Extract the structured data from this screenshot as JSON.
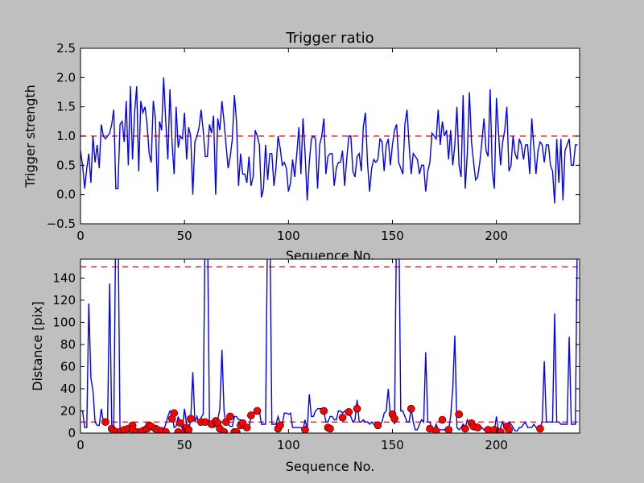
{
  "chart_data": [
    {
      "type": "line",
      "title": "Trigger ratio",
      "xlabel": "Sequence No.",
      "ylabel": "Trigger strength",
      "xlim": [
        0,
        240
      ],
      "ylim": [
        -0.5,
        2.5
      ],
      "xticks": [
        "0",
        "50",
        "100",
        "150",
        "200"
      ],
      "xtick_values": [
        0,
        50,
        100,
        150,
        200
      ],
      "yticks": [
        "−0.5",
        "0.0",
        "0.5",
        "1.0",
        "1.5",
        "2.0",
        "2.5"
      ],
      "ytick_values": [
        -0.5,
        0,
        0.5,
        1.0,
        1.5,
        2.0,
        2.5
      ],
      "threshold": 1.0,
      "series_color": "#0000ff",
      "threshold_color": "#ff0000",
      "values": [
        0.75,
        0.5,
        0.1,
        0.45,
        0.7,
        0.2,
        1.0,
        0.55,
        0.85,
        0.45,
        1.2,
        1.0,
        0.95,
        1.0,
        1.05,
        1.2,
        1.45,
        0.1,
        0.1,
        1.2,
        1.25,
        0.9,
        1.6,
        0.5,
        1.85,
        0.6,
        1.4,
        1.85,
        0.4,
        1.6,
        1.4,
        1.5,
        1.2,
        0.7,
        0.55,
        1.6,
        1.3,
        0.05,
        1.25,
        1.1,
        2.0,
        1.25,
        0.6,
        1.8,
        0.9,
        0.35,
        1.5,
        0.8,
        1.0,
        0.95,
        1.4,
        0.6,
        1.15,
        1.0,
        0.0,
        0.9,
        1.0,
        1.15,
        1.45,
        1.1,
        0.65,
        0.65,
        1.2,
        1.05,
        1.35,
        0.0,
        1.3,
        1.1,
        1.6,
        1.25,
        0.85,
        0.45,
        0.65,
        0.95,
        1.7,
        1.25,
        0.15,
        0.7,
        0.35,
        0.35,
        0.2,
        0.65,
        0.15,
        0.3,
        1.1,
        1.0,
        0.85,
        -0.05,
        0.1,
        0.85,
        0.25,
        0.7,
        0.7,
        0.15,
        0.45,
        1.0,
        0.8,
        0.5,
        0.55,
        0.45,
        0.05,
        0.2,
        0.6,
        0.3,
        0.7,
        1.15,
        0.35,
        1.3,
        0.7,
        -0.1,
        0.55,
        0.95,
        1.0,
        0.95,
        0.1,
        0.85,
        1.0,
        1.3,
        0.35,
        0.65,
        0.7,
        0.7,
        0.15,
        0.45,
        0.55,
        0.55,
        0.75,
        0.15,
        0.6,
        1.0,
        1.0,
        0.4,
        0.3,
        0.65,
        0.7,
        0.4,
        1.15,
        1.4,
        0.55,
        0.05,
        0.45,
        0.6,
        0.55,
        0.6,
        0.95,
        0.9,
        0.4,
        0.85,
        0.95,
        0.5,
        0.85,
        1.1,
        1.2,
        0.55,
        0.45,
        0.35,
        1.2,
        1.45,
        0.85,
        0.35,
        0.7,
        0.65,
        0.6,
        0.35,
        0.5,
        0.5,
        0.05,
        0.4,
        0.55,
        1.05,
        1.0,
        0.95,
        1.45,
        0.85,
        1.25,
        1.0,
        1.1,
        0.6,
        1.1,
        0.5,
        0.85,
        1.5,
        0.5,
        0.3,
        1.7,
        0.1,
        0.7,
        1.75,
        0.9,
        0.55,
        0.25,
        0.3,
        0.55,
        0.9,
        1.3,
        0.75,
        0.65,
        1.8,
        0.4,
        0.1,
        1.65,
        1.05,
        0.5,
        0.9,
        1.1,
        1.5,
        0.4,
        0.5,
        1.0,
        0.7,
        0.6,
        0.95,
        0.85,
        0.6,
        0.85,
        0.85,
        0.35,
        1.3,
        0.8,
        0.35,
        0.75,
        0.9,
        0.85,
        0.55,
        0.85,
        0.85,
        0.5,
        0.4,
        -0.15,
        0.95,
        0.2,
        0.95,
        -0.1,
        0.75,
        0.85,
        0.95,
        0.5,
        0.5,
        0.85,
        0.85
      ]
    },
    {
      "type": "line",
      "title": "",
      "xlabel": "Sequence No.",
      "ylabel": "Distance [pix]",
      "xlim": [
        0,
        240
      ],
      "ylim": [
        0,
        157
      ],
      "xticks": [
        "0",
        "50",
        "100",
        "150",
        "200"
      ],
      "xtick_values": [
        0,
        50,
        100,
        150,
        200
      ],
      "yticks": [
        "0",
        "20",
        "40",
        "60",
        "80",
        "100",
        "120",
        "140"
      ],
      "ytick_values": [
        0,
        20,
        40,
        60,
        80,
        100,
        120,
        140
      ],
      "thresholds": [
        10,
        150
      ],
      "series_color": "#0000ff",
      "threshold_color": "#ff0000",
      "marker_color": "#ff0000",
      "values": [
        20,
        20,
        5,
        5,
        117,
        50,
        38,
        10,
        7,
        7,
        22,
        10,
        8,
        8,
        135,
        8,
        2,
        200,
        200,
        2,
        3,
        3,
        5,
        4,
        5,
        8,
        3,
        2,
        3,
        4,
        5,
        6,
        7,
        3,
        4,
        4,
        3,
        2,
        3,
        5,
        3,
        8,
        15,
        20,
        18,
        5,
        6,
        15,
        8,
        4,
        22,
        8,
        3,
        12,
        55,
        10,
        15,
        8,
        14,
        17,
        200,
        200,
        8,
        8,
        5,
        6,
        12,
        22,
        75,
        20,
        8,
        8,
        6,
        6,
        15,
        15,
        12,
        12,
        10,
        10,
        5,
        5,
        15,
        18,
        20,
        22,
        20,
        8,
        8,
        8,
        200,
        200,
        8,
        8,
        8,
        15,
        8,
        8,
        18,
        18,
        17,
        18,
        5,
        5,
        5,
        5,
        5,
        3,
        12,
        3,
        35,
        15,
        15,
        20,
        22,
        22,
        22,
        20,
        10,
        10,
        15,
        15,
        12,
        12,
        20,
        20,
        18,
        20,
        20,
        18,
        15,
        10,
        12,
        30,
        10,
        10,
        12,
        10,
        10,
        8,
        10,
        8,
        8,
        10,
        8,
        10,
        18,
        20,
        40,
        15,
        15,
        8,
        200,
        200,
        20,
        20,
        15,
        10,
        10,
        22,
        10,
        3,
        3,
        8,
        12,
        10,
        73,
        10,
        10,
        3,
        3,
        8,
        3,
        3,
        3,
        3,
        5,
        3,
        15,
        40,
        88,
        5,
        3,
        5,
        8,
        5,
        12,
        8,
        5,
        3,
        3,
        8,
        3,
        5,
        3,
        3,
        2,
        3,
        2,
        2,
        15,
        2,
        5,
        10,
        5,
        5,
        10,
        8,
        5,
        2,
        2,
        5,
        5,
        8,
        10,
        5,
        5,
        5,
        8,
        5,
        5,
        5,
        10,
        65,
        10,
        10,
        10,
        10,
        108,
        10,
        10,
        8,
        8,
        8,
        8,
        87,
        8,
        8,
        8,
        200
      ],
      "markers": [
        [
          12,
          10
        ],
        [
          15,
          4
        ],
        [
          16,
          2
        ],
        [
          17,
          1
        ],
        [
          19,
          1
        ],
        [
          21,
          3
        ],
        [
          23,
          4
        ],
        [
          25,
          7
        ],
        [
          25,
          3
        ],
        [
          27,
          1
        ],
        [
          29,
          1
        ],
        [
          30,
          2
        ],
        [
          32,
          4
        ],
        [
          33,
          7
        ],
        [
          34,
          6
        ],
        [
          36,
          4
        ],
        [
          37,
          3
        ],
        [
          39,
          2
        ],
        [
          41,
          1
        ],
        [
          44,
          13
        ],
        [
          45,
          18
        ],
        [
          47,
          1
        ],
        [
          48,
          9
        ],
        [
          50,
          1
        ],
        [
          51,
          5
        ],
        [
          52,
          3
        ],
        [
          53,
          13
        ],
        [
          58,
          10
        ],
        [
          60,
          10
        ],
        [
          63,
          8
        ],
        [
          65,
          11
        ],
        [
          66,
          9
        ],
        [
          67,
          4
        ],
        [
          69,
          1
        ],
        [
          70,
          10
        ],
        [
          72,
          15
        ],
        [
          74,
          1
        ],
        [
          75,
          1
        ],
        [
          77,
          7
        ],
        [
          78,
          9
        ],
        [
          80,
          5
        ],
        [
          82,
          16
        ],
        [
          85,
          20
        ],
        [
          95,
          4
        ],
        [
          96,
          7
        ],
        [
          108,
          3
        ],
        [
          117,
          20
        ],
        [
          119,
          5
        ],
        [
          120,
          4
        ],
        [
          126,
          14
        ],
        [
          129,
          19
        ],
        [
          133,
          22
        ],
        [
          143,
          7
        ],
        [
          150,
          17
        ],
        [
          151,
          13
        ],
        [
          159,
          22
        ],
        [
          168,
          4
        ],
        [
          171,
          2
        ],
        [
          174,
          12
        ],
        [
          177,
          3
        ],
        [
          182,
          17
        ],
        [
          185,
          4
        ],
        [
          188,
          9
        ],
        [
          189,
          6
        ],
        [
          191,
          5
        ],
        [
          196,
          3
        ],
        [
          199,
          3
        ],
        [
          202,
          1
        ],
        [
          205,
          6
        ],
        [
          206,
          3
        ],
        [
          221,
          4
        ]
      ]
    }
  ]
}
